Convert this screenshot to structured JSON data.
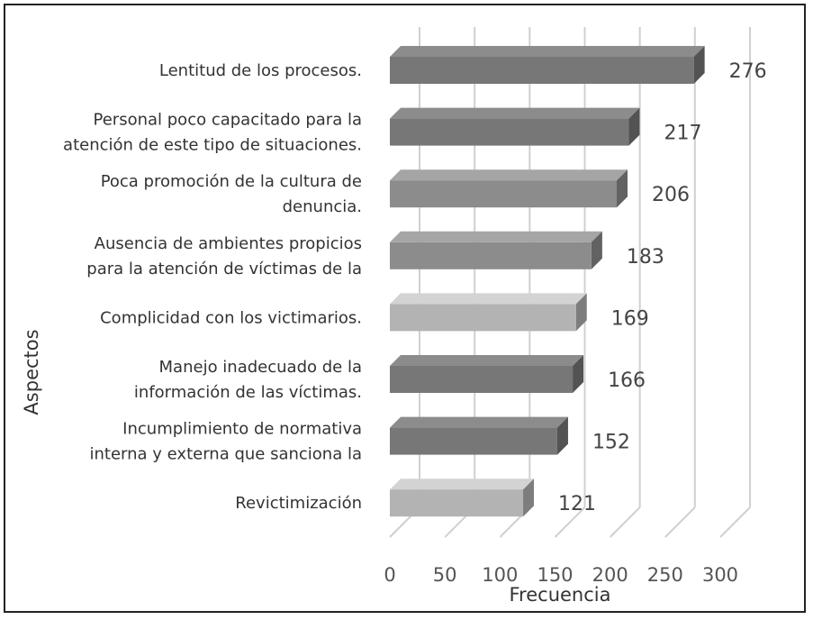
{
  "chart_data": {
    "type": "bar",
    "orientation": "horizontal",
    "title": "",
    "xlabel": "Frecuencia",
    "ylabel": "Aspectos",
    "xlim": [
      0,
      300
    ],
    "xticks": [
      "0",
      "50",
      "100",
      "150",
      "200",
      "250",
      "300"
    ],
    "grid": true,
    "legend": "none",
    "categories": [
      [
        "Lentitud de los procesos."
      ],
      [
        "Personal poco capacitado para la",
        "atención de este tipo de situaciones."
      ],
      [
        "Poca promoción de la cultura de",
        "denuncia."
      ],
      [
        "Ausencia de ambientes propicios",
        "para la atención de víctimas de la"
      ],
      [
        "Complicidad con los victimarios."
      ],
      [
        "Manejo inadecuado de la",
        "información de las víctimas."
      ],
      [
        "Incumplimiento de normativa",
        "interna y externa que sanciona la"
      ],
      [
        "Revictimización"
      ]
    ],
    "values": [
      276,
      217,
      206,
      183,
      169,
      166,
      152,
      121
    ],
    "value_labels": [
      "276",
      "217",
      "206",
      "183",
      "169",
      "166",
      "152",
      "121"
    ],
    "bar_colors": [
      "#777777",
      "#777777",
      "#8c8c8c",
      "#8c8c8c",
      "#b3b3b3",
      "#777777",
      "#777777",
      "#b3b3b3"
    ]
  }
}
